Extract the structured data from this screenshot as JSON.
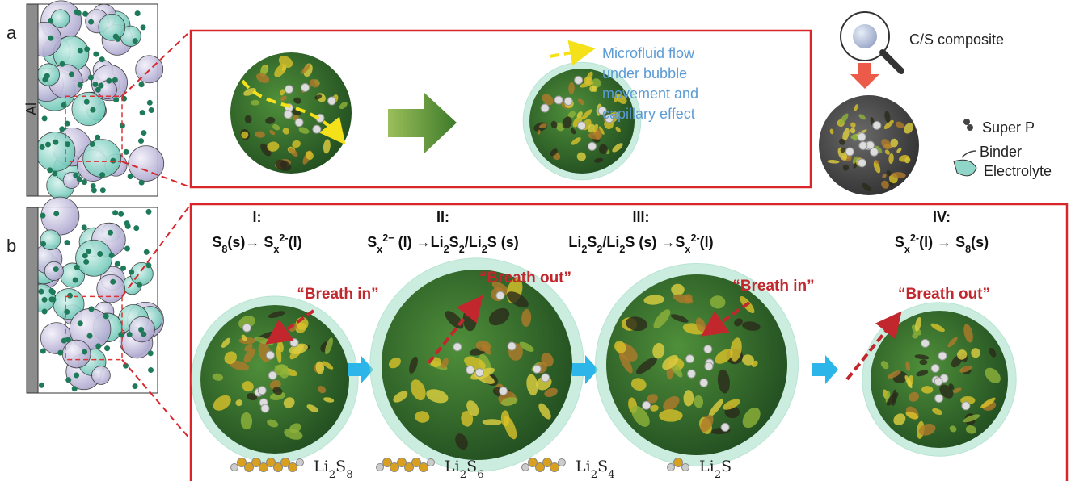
{
  "panel_a": {
    "label": "a",
    "electrode_label": "Al",
    "flow_text": [
      "Microfluid flow",
      "under bubble",
      "movement and",
      "capillary effect"
    ],
    "composite_label": "C/S composite",
    "legend": [
      "Super P",
      "Binder",
      "Electrolyte"
    ]
  },
  "panel_b": {
    "label": "b",
    "stages": [
      {
        "numeral": "I:",
        "reaction": [
          "S",
          {
            "sub": "8"
          },
          "(s)→ S",
          {
            "sub": "x"
          },
          {
            "sup": "2-"
          },
          "(l)"
        ],
        "breath": "“Breath in”"
      },
      {
        "numeral": "II:",
        "reaction": [
          "S",
          {
            "sub": "x"
          },
          {
            "sup": "2−"
          },
          " (l) →Li",
          {
            "sub": "2"
          },
          "S",
          {
            "sub": "2"
          },
          "/Li",
          {
            "sub": "2"
          },
          "S (s)"
        ],
        "breath": "“Breath out”"
      },
      {
        "numeral": "III:",
        "reaction": [
          "Li",
          {
            "sub": "2"
          },
          "S",
          {
            "sub": "2"
          },
          "/Li",
          {
            "sub": "2"
          },
          "S (s) →S",
          {
            "sub": "x"
          },
          {
            "sup": "2-"
          },
          "(l)"
        ],
        "breath": "“Breath in”"
      },
      {
        "numeral": "IV:",
        "reaction": [
          "S",
          {
            "sub": "x"
          },
          {
            "sup": "2-"
          },
          "(l) → S",
          {
            "sub": "8"
          },
          "(s)"
        ],
        "breath": "“Breath out”"
      }
    ],
    "species": [
      [
        "Li",
        {
          "sub": "2"
        },
        "S",
        {
          "sub": "8"
        }
      ],
      [
        "Li",
        {
          "sub": "2"
        },
        "S",
        {
          "sub": "6"
        }
      ],
      [
        "Li",
        {
          "sub": "2"
        },
        "S",
        {
          "sub": "4"
        }
      ],
      [
        "Li",
        {
          "sub": "2"
        },
        "S"
      ]
    ]
  }
}
